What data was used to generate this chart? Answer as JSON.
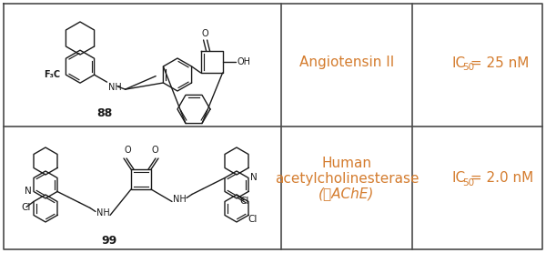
{
  "fig_width": 6.0,
  "fig_height": 2.78,
  "dpi": 100,
  "bg_color": "#ffffff",
  "border_color": "#4a4a4a",
  "text_color": "#d47c2e",
  "structure_color": "#1a1a1a",
  "col_splits": [
    0.515,
    0.755
  ],
  "row_split": 0.5,
  "row1": {
    "compound_num": "88",
    "target": "Angiotensin II",
    "ic50": "IC₅₀ = 25 nM"
  },
  "row2": {
    "compound_num": "99",
    "target_line1": "Human",
    "target_line2": "acetylcholinesterase",
    "target_line3": "(ℊAChE)",
    "ic50": "IC₅₀ = 2.0 nM"
  }
}
